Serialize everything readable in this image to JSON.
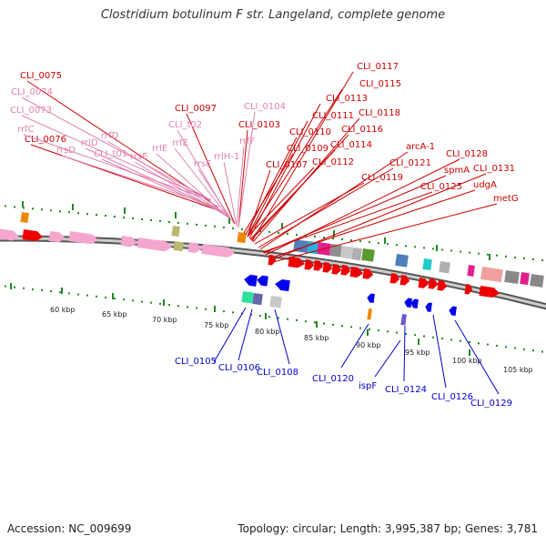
{
  "title": "Clostridium botulinum F str. Langeland, complete genome",
  "footer": {
    "accession": "Accession: NC_009699",
    "summary": "Topology: circular; Length: 3,995,387 bp; Genes: 3,781"
  },
  "colors": {
    "fwd_label": "#cc0000",
    "rrna_label": "#e080b0",
    "rev_label": "#0000cc",
    "backbone": "#888888",
    "tick": "#228822"
  },
  "scale_labels": [
    "60 kbp",
    "65 kbp",
    "70 kbp",
    "75 kbp",
    "80 kbp",
    "85 kbp",
    "90 kbp",
    "95 kbp",
    "100 kbp",
    "105 kbp"
  ],
  "labels": {
    "forward_genes": [
      "CLI_0075",
      "CLI_0076",
      "CLI_0097",
      "CLI_0103",
      "CLI_0107",
      "CLI_0109",
      "CLI_0110",
      "CLI_0111",
      "CLI_0112",
      "CLI_0113",
      "CLI_0114",
      "CLI_0115",
      "CLI_0116",
      "CLI_0117",
      "CLI_0118",
      "CLI_0119",
      "CLI_0121",
      "arcA-1",
      "CLI_0125",
      "spmA",
      "CLI_0128",
      "udgA",
      "CLI_0131",
      "metG"
    ],
    "rrna_genes": [
      "CLI_0074",
      "CLI_0073",
      "rrfC",
      "rrsD",
      "rrlD",
      "CLI_t01",
      "rrfD",
      "rrsE",
      "rrlE",
      "rrfE",
      "CLI_t02",
      "rrsF",
      "rrlH-1",
      "rrfF",
      "CLI_0104"
    ],
    "reverse_genes": [
      "CLI_0105",
      "CLI_0106",
      "CLI_0108",
      "CLI_0120",
      "ispF",
      "CLI_0124",
      "CLI_0126",
      "CLI_0129"
    ]
  }
}
